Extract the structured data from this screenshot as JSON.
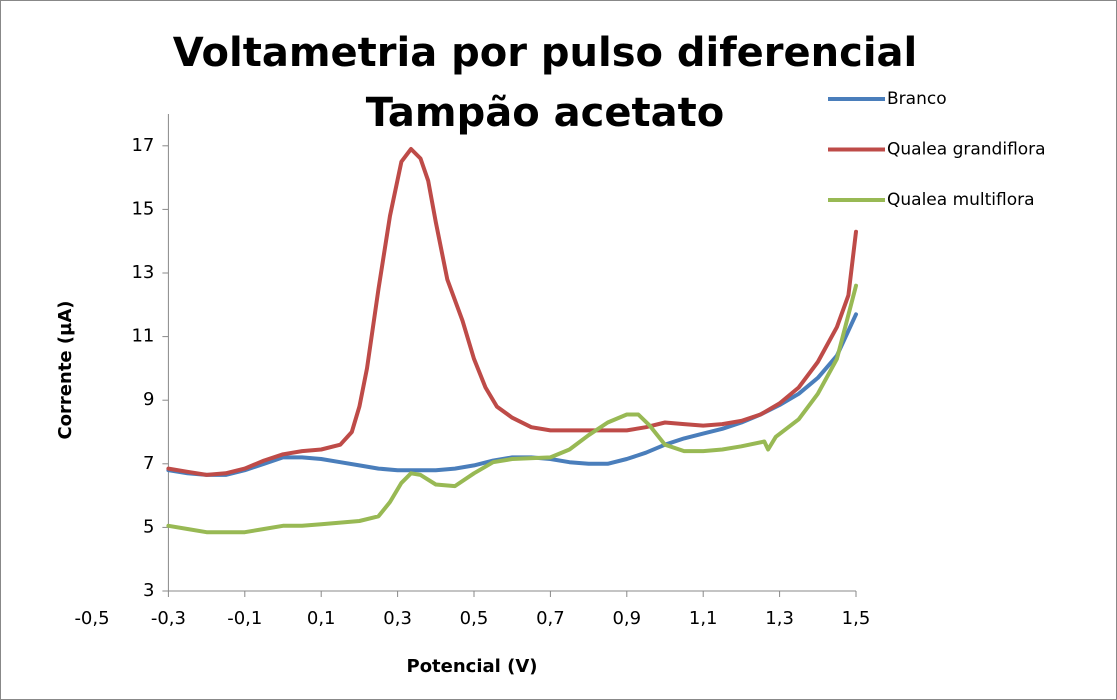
{
  "chart_data": {
    "type": "line",
    "title": [
      "Voltametria por pulso diferencial",
      "Tampão acetato"
    ],
    "xlabel": "Potencial (V)",
    "ylabel": "Corrente (µA)",
    "xlim": [
      -0.5,
      1.5
    ],
    "ylim": [
      3,
      18
    ],
    "y_axis_crosses": -0.3,
    "xticks": [
      {
        "value": -0.5,
        "label": "-0,5"
      },
      {
        "value": -0.3,
        "label": "-0,3"
      },
      {
        "value": -0.1,
        "label": "-0,1"
      },
      {
        "value": 0.1,
        "label": "0,1"
      },
      {
        "value": 0.3,
        "label": "0,3"
      },
      {
        "value": 0.5,
        "label": "0,5"
      },
      {
        "value": 0.7,
        "label": "0,7"
      },
      {
        "value": 0.9,
        "label": "0,9"
      },
      {
        "value": 1.1,
        "label": "1,1"
      },
      {
        "value": 1.3,
        "label": "1,3"
      },
      {
        "value": 1.5,
        "label": "1,5"
      }
    ],
    "yticks": [
      3,
      5,
      7,
      9,
      11,
      13,
      15,
      17
    ],
    "grid": false,
    "legend": "top-right",
    "series": [
      {
        "name": "Branco",
        "color": "#4a7ebb",
        "x": [
          -0.3,
          -0.25,
          -0.2,
          -0.15,
          -0.1,
          -0.05,
          0,
          0.05,
          0.1,
          0.15,
          0.2,
          0.25,
          0.3,
          0.35,
          0.4,
          0.45,
          0.5,
          0.55,
          0.6,
          0.65,
          0.7,
          0.75,
          0.8,
          0.85,
          0.9,
          0.95,
          1.0,
          1.05,
          1.1,
          1.15,
          1.2,
          1.25,
          1.3,
          1.35,
          1.4,
          1.45,
          1.5
        ],
        "values": [
          6.8,
          6.7,
          6.65,
          6.65,
          6.8,
          7.0,
          7.2,
          7.2,
          7.15,
          7.05,
          6.95,
          6.85,
          6.8,
          6.8,
          6.8,
          6.85,
          6.95,
          7.1,
          7.2,
          7.2,
          7.15,
          7.05,
          7.0,
          7.0,
          7.15,
          7.35,
          7.6,
          7.8,
          7.95,
          8.1,
          8.3,
          8.55,
          8.85,
          9.2,
          9.7,
          10.4,
          11.7
        ]
      },
      {
        "name": "Qualea grandiflora",
        "color": "#be4b48",
        "x": [
          -0.3,
          -0.25,
          -0.2,
          -0.15,
          -0.1,
          -0.05,
          0,
          0.05,
          0.1,
          0.15,
          0.18,
          0.2,
          0.22,
          0.25,
          0.28,
          0.31,
          0.335,
          0.36,
          0.38,
          0.4,
          0.43,
          0.47,
          0.5,
          0.53,
          0.56,
          0.6,
          0.65,
          0.7,
          0.8,
          0.9,
          0.95,
          1.0,
          1.05,
          1.1,
          1.15,
          1.2,
          1.25,
          1.3,
          1.35,
          1.4,
          1.45,
          1.48,
          1.5
        ],
        "values": [
          6.85,
          6.75,
          6.65,
          6.7,
          6.85,
          7.1,
          7.3,
          7.4,
          7.45,
          7.6,
          8.0,
          8.8,
          10,
          12.5,
          14.8,
          16.5,
          16.9,
          16.6,
          15.9,
          14.6,
          12.8,
          11.5,
          10.3,
          9.4,
          8.8,
          8.45,
          8.15,
          8.05,
          8.05,
          8.05,
          8.15,
          8.3,
          8.25,
          8.2,
          8.25,
          8.35,
          8.55,
          8.9,
          9.4,
          10.2,
          11.3,
          12.3,
          14.3
        ]
      },
      {
        "name": "Qualea multiflora",
        "color": "#98b954",
        "x": [
          -0.3,
          -0.25,
          -0.2,
          -0.15,
          -0.1,
          -0.05,
          0,
          0.05,
          0.1,
          0.15,
          0.2,
          0.25,
          0.28,
          0.31,
          0.335,
          0.36,
          0.4,
          0.45,
          0.5,
          0.55,
          0.6,
          0.7,
          0.75,
          0.8,
          0.85,
          0.9,
          0.93,
          0.96,
          1.0,
          1.05,
          1.1,
          1.15,
          1.2,
          1.26,
          1.27,
          1.29,
          1.35,
          1.4,
          1.45,
          1.5
        ],
        "values": [
          5.05,
          4.95,
          4.85,
          4.85,
          4.85,
          4.95,
          5.05,
          5.05,
          5.1,
          5.15,
          5.2,
          5.35,
          5.8,
          6.4,
          6.7,
          6.65,
          6.35,
          6.3,
          6.7,
          7.05,
          7.15,
          7.2,
          7.45,
          7.9,
          8.3,
          8.55,
          8.55,
          8.2,
          7.6,
          7.4,
          7.4,
          7.45,
          7.55,
          7.7,
          7.45,
          7.85,
          8.4,
          9.2,
          10.3,
          12.6
        ]
      }
    ]
  }
}
